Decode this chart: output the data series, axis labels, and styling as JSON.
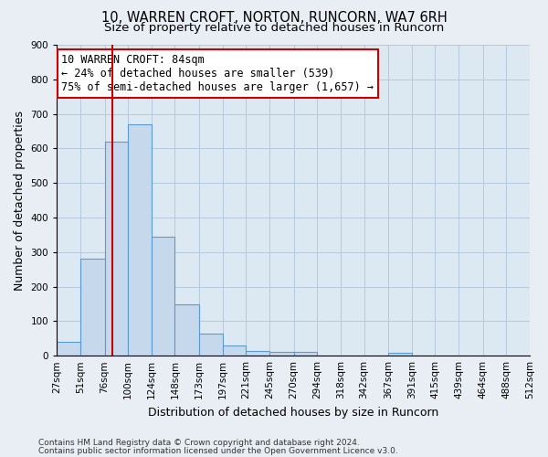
{
  "title1": "10, WARREN CROFT, NORTON, RUNCORN, WA7 6RH",
  "title2": "Size of property relative to detached houses in Runcorn",
  "xlabel": "Distribution of detached houses by size in Runcorn",
  "ylabel": "Number of detached properties",
  "bin_edges": [
    27,
    51,
    76,
    100,
    124,
    148,
    173,
    197,
    221,
    245,
    270,
    294,
    318,
    342,
    367,
    391,
    415,
    439,
    464,
    488,
    512
  ],
  "bar_heights": [
    40,
    280,
    620,
    670,
    345,
    148,
    65,
    30,
    15,
    12,
    10,
    0,
    0,
    0,
    8,
    0,
    0,
    0,
    0,
    0
  ],
  "bar_color": "#c6d9ec",
  "bar_edgecolor": "#5b9bd5",
  "vline_x": 84,
  "vline_color": "#cc0000",
  "annotation_text": "10 WARREN CROFT: 84sqm\n← 24% of detached houses are smaller (539)\n75% of semi-detached houses are larger (1,657) →",
  "annotation_box_facecolor": "#ffffff",
  "annotation_box_edgecolor": "#cc0000",
  "ylim": [
    0,
    900
  ],
  "yticks": [
    0,
    100,
    200,
    300,
    400,
    500,
    600,
    700,
    800,
    900
  ],
  "footer1": "Contains HM Land Registry data © Crown copyright and database right 2024.",
  "footer2": "Contains public sector information licensed under the Open Government Licence v3.0.",
  "fig_facecolor": "#e8eef4",
  "plot_facecolor": "#dce8f2",
  "grid_color": "#b0c4d8",
  "title_fontsize": 10.5,
  "subtitle_fontsize": 9.5,
  "axis_label_fontsize": 9,
  "tick_fontsize": 7.5,
  "footer_fontsize": 6.5,
  "annotation_fontsize": 8.5
}
